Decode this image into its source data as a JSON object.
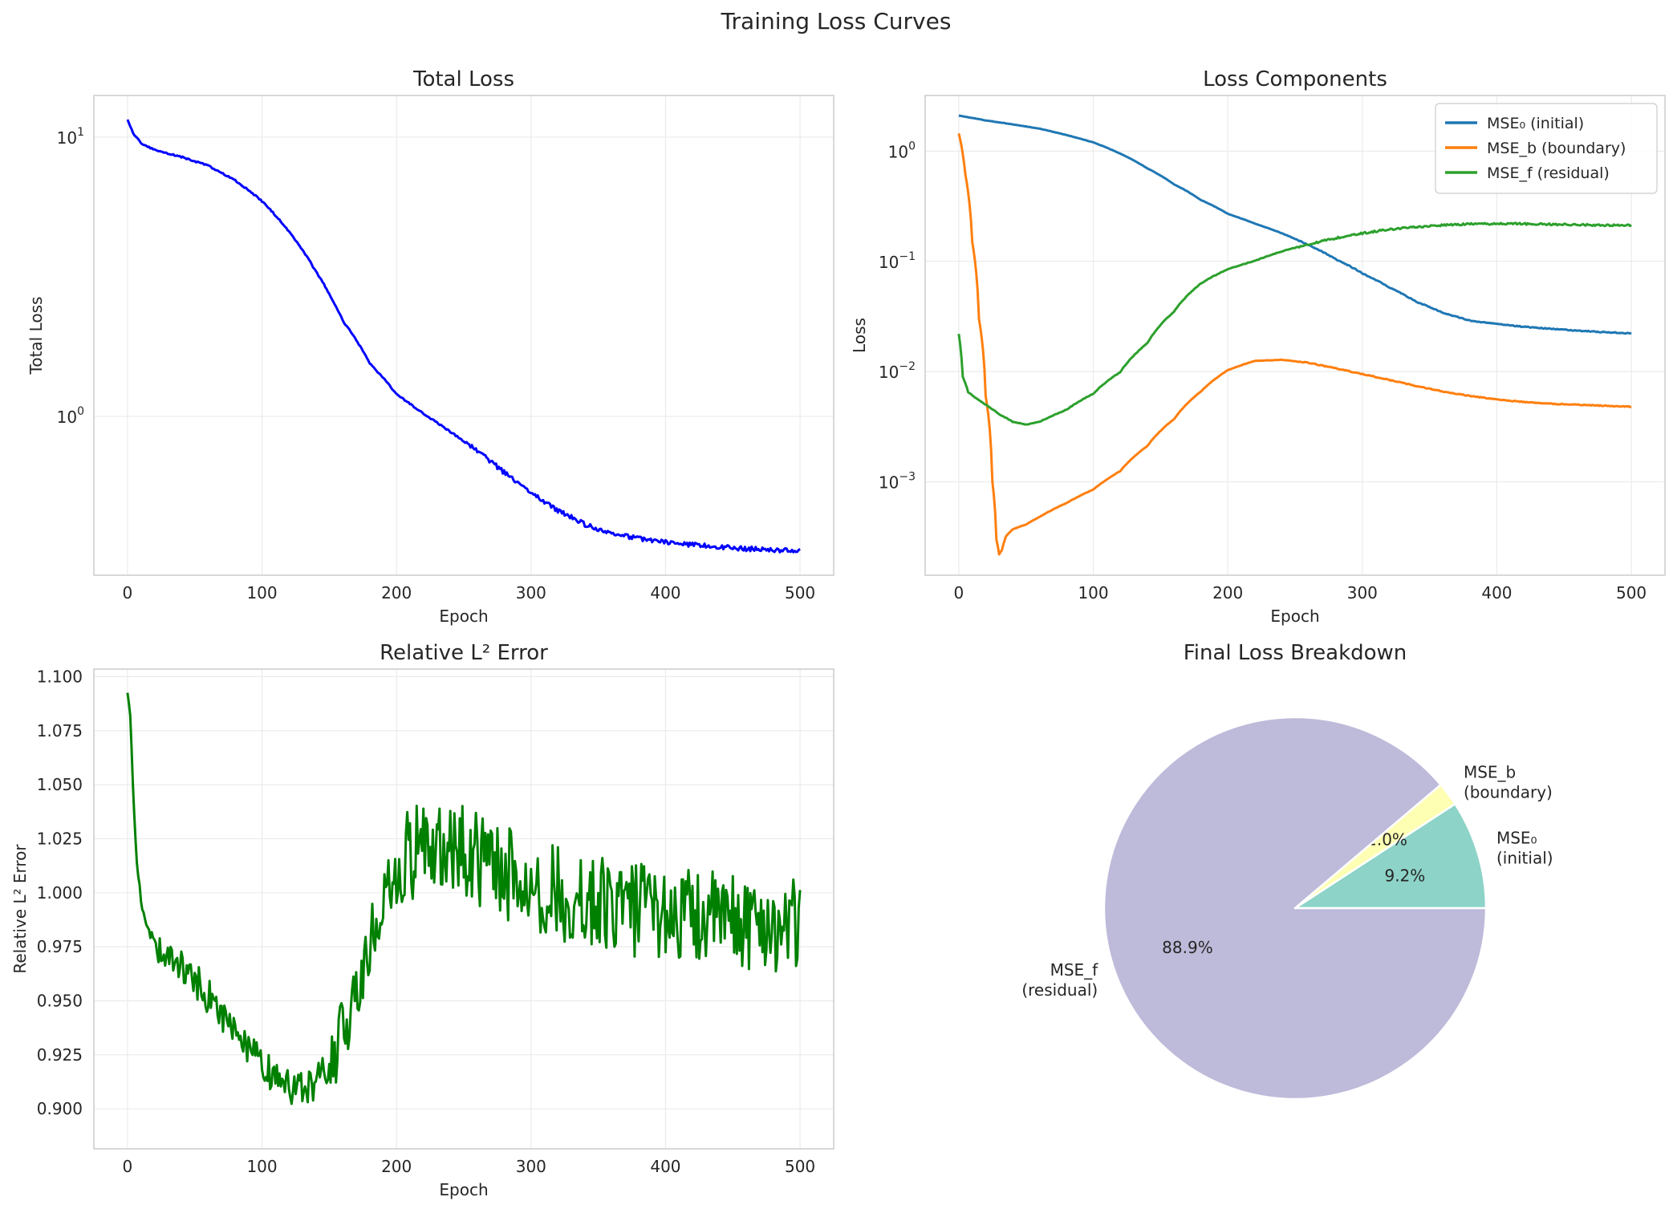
{
  "figure_title": "Training Loss Curves",
  "chart_data": [
    {
      "type": "line",
      "id": "total",
      "title": "Total Loss",
      "xlabel": "Epoch",
      "ylabel": "Total Loss",
      "yscale": "log",
      "xlim": [
        -25,
        525
      ],
      "ylim": [
        0.27,
        14.1
      ],
      "xticks": [
        0,
        100,
        200,
        300,
        400,
        500
      ],
      "yticks": [
        {
          "value": 10,
          "base": "10",
          "exp": "1"
        },
        {
          "value": 1,
          "base": "10",
          "exp": "0"
        }
      ],
      "grid": true,
      "series": [
        {
          "name": "Total Loss",
          "color": "#0000ff",
          "noise": 0.012,
          "points": [
            [
              0,
              11.5
            ],
            [
              2,
              10.9
            ],
            [
              5,
              10.2
            ],
            [
              10,
              9.5
            ],
            [
              20,
              9.0
            ],
            [
              40,
              8.5
            ],
            [
              60,
              7.9
            ],
            [
              80,
              7.0
            ],
            [
              100,
              5.9
            ],
            [
              120,
              4.6
            ],
            [
              140,
              3.3
            ],
            [
              160,
              2.2
            ],
            [
              180,
              1.55
            ],
            [
              200,
              1.2
            ],
            [
              220,
              1.02
            ],
            [
              240,
              0.88
            ],
            [
              260,
              0.75
            ],
            [
              280,
              0.63
            ],
            [
              300,
              0.53
            ],
            [
              320,
              0.46
            ],
            [
              340,
              0.41
            ],
            [
              360,
              0.38
            ],
            [
              380,
              0.365
            ],
            [
              400,
              0.355
            ],
            [
              420,
              0.347
            ],
            [
              440,
              0.341
            ],
            [
              460,
              0.336
            ],
            [
              480,
              0.332
            ],
            [
              500,
              0.33
            ]
          ]
        }
      ]
    },
    {
      "type": "line",
      "id": "components",
      "title": "Loss Components",
      "xlabel": "Epoch",
      "ylabel": "Loss",
      "yscale": "log",
      "xlim": [
        -25,
        525
      ],
      "ylim": [
        0.000142,
        3.2
      ],
      "xticks": [
        0,
        100,
        200,
        300,
        400,
        500
      ],
      "yticks": [
        {
          "value": 1,
          "base": "10",
          "exp": "0"
        },
        {
          "value": 0.1,
          "base": "10",
          "exp": "−1"
        },
        {
          "value": 0.01,
          "base": "10",
          "exp": "−2"
        },
        {
          "value": 0.001,
          "base": "10",
          "exp": "−3"
        }
      ],
      "grid": true,
      "legend_position": "top-right",
      "series": [
        {
          "name": "MSE₀ (initial)",
          "color": "#1f77b4",
          "noise": 0.006,
          "points": [
            [
              0,
              2.1
            ],
            [
              20,
              1.9
            ],
            [
              40,
              1.75
            ],
            [
              60,
              1.6
            ],
            [
              80,
              1.4
            ],
            [
              100,
              1.2
            ],
            [
              120,
              0.95
            ],
            [
              140,
              0.7
            ],
            [
              160,
              0.5
            ],
            [
              180,
              0.36
            ],
            [
              200,
              0.27
            ],
            [
              220,
              0.22
            ],
            [
              240,
              0.18
            ],
            [
              260,
              0.14
            ],
            [
              280,
              0.105
            ],
            [
              300,
              0.078
            ],
            [
              320,
              0.058
            ],
            [
              340,
              0.043
            ],
            [
              360,
              0.034
            ],
            [
              380,
              0.029
            ],
            [
              400,
              0.027
            ],
            [
              420,
              0.0255
            ],
            [
              440,
              0.0245
            ],
            [
              460,
              0.0235
            ],
            [
              480,
              0.0228
            ],
            [
              500,
              0.0222
            ]
          ]
        },
        {
          "name": "MSE_b (boundary)",
          "color": "#ff7f0e",
          "noise": 0.006,
          "points": [
            [
              0,
              1.45
            ],
            [
              5,
              0.6
            ],
            [
              10,
              0.15
            ],
            [
              15,
              0.03
            ],
            [
              20,
              0.006
            ],
            [
              25,
              0.001
            ],
            [
              28,
              0.0003
            ],
            [
              30,
              0.00022
            ],
            [
              32,
              0.00024
            ],
            [
              35,
              0.00032
            ],
            [
              40,
              0.00037
            ],
            [
              50,
              0.00041
            ],
            [
              60,
              0.00048
            ],
            [
              80,
              0.00064
            ],
            [
              100,
              0.00085
            ],
            [
              120,
              0.00125
            ],
            [
              140,
              0.0021
            ],
            [
              160,
              0.0037
            ],
            [
              180,
              0.0066
            ],
            [
              200,
              0.0103
            ],
            [
              220,
              0.0125
            ],
            [
              240,
              0.0128
            ],
            [
              260,
              0.012
            ],
            [
              280,
              0.0107
            ],
            [
              300,
              0.0095
            ],
            [
              320,
              0.0084
            ],
            [
              340,
              0.0074
            ],
            [
              360,
              0.0066
            ],
            [
              380,
              0.006
            ],
            [
              400,
              0.0056
            ],
            [
              420,
              0.0053
            ],
            [
              440,
              0.0051
            ],
            [
              460,
              0.005
            ],
            [
              480,
              0.0049
            ],
            [
              500,
              0.0048
            ]
          ]
        },
        {
          "name": "MSE_f (residual)",
          "color": "#2ca02c",
          "noise": 0.012,
          "points": [
            [
              0,
              0.022
            ],
            [
              3,
              0.009
            ],
            [
              7,
              0.0065
            ],
            [
              12,
              0.0058
            ],
            [
              20,
              0.005
            ],
            [
              30,
              0.0041
            ],
            [
              40,
              0.0035
            ],
            [
              50,
              0.0033
            ],
            [
              60,
              0.0035
            ],
            [
              80,
              0.0045
            ],
            [
              100,
              0.0063
            ],
            [
              120,
              0.0099
            ],
            [
              140,
              0.018
            ],
            [
              160,
              0.035
            ],
            [
              180,
              0.063
            ],
            [
              200,
              0.085
            ],
            [
              220,
              0.101
            ],
            [
              240,
              0.123
            ],
            [
              260,
              0.143
            ],
            [
              280,
              0.162
            ],
            [
              300,
              0.18
            ],
            [
              320,
              0.195
            ],
            [
              340,
              0.205
            ],
            [
              360,
              0.213
            ],
            [
              380,
              0.218
            ],
            [
              400,
              0.22
            ],
            [
              420,
              0.219
            ],
            [
              440,
              0.217
            ],
            [
              460,
              0.215
            ],
            [
              480,
              0.213
            ],
            [
              500,
              0.212
            ]
          ]
        }
      ]
    },
    {
      "type": "line",
      "id": "l2",
      "title": "Relative L² Error",
      "xlabel": "Epoch",
      "ylabel": "Relative L² Error",
      "yscale": "linear",
      "xlim": [
        -25,
        525
      ],
      "ylim": [
        0.8815,
        1.1035
      ],
      "xticks": [
        0,
        100,
        200,
        300,
        400,
        500
      ],
      "yticks": [
        {
          "value": 0.9,
          "label": "0.900"
        },
        {
          "value": 0.925,
          "label": "0.925"
        },
        {
          "value": 0.95,
          "label": "0.950"
        },
        {
          "value": 0.975,
          "label": "0.975"
        },
        {
          "value": 1.0,
          "label": "1.000"
        },
        {
          "value": 1.025,
          "label": "1.025"
        },
        {
          "value": 1.05,
          "label": "1.050"
        },
        {
          "value": 1.075,
          "label": "1.075"
        },
        {
          "value": 1.1,
          "label": "1.100"
        }
      ],
      "grid": true,
      "series": [
        {
          "name": "Relative L² Error",
          "color": "#008000",
          "noise": 0.0,
          "points": [
            [
              0,
              1.094
            ],
            [
              2,
              1.082
            ],
            [
              4,
              1.052
            ],
            [
              6,
              1.022
            ],
            [
              8,
              1.008
            ],
            [
              10,
              0.997
            ],
            [
              12,
              0.99
            ],
            [
              15,
              0.983
            ],
            [
              20,
              0.978
            ],
            [
              25,
              0.974
            ],
            [
              30,
              0.97
            ],
            [
              40,
              0.966
            ],
            [
              50,
              0.96
            ],
            [
              60,
              0.952
            ],
            [
              70,
              0.944
            ],
            [
              80,
              0.936
            ],
            [
              90,
              0.928
            ],
            [
              100,
              0.92
            ],
            [
              110,
              0.914
            ],
            [
              120,
              0.91
            ],
            [
              130,
              0.91
            ],
            [
              140,
              0.912
            ],
            [
              150,
              0.92
            ],
            [
              160,
              0.935
            ],
            [
              170,
              0.955
            ],
            [
              180,
              0.975
            ],
            [
              190,
              0.995
            ],
            [
              200,
              1.01
            ],
            [
              210,
              1.018
            ],
            [
              220,
              1.022
            ],
            [
              230,
              1.024
            ],
            [
              240,
              1.022
            ],
            [
              250,
              1.02
            ],
            [
              260,
              1.016
            ],
            [
              270,
              1.013
            ],
            [
              280,
              1.01
            ],
            [
              290,
              1.007
            ],
            [
              300,
              1.004
            ],
            [
              320,
              1.0
            ],
            [
              350,
              0.995
            ],
            [
              380,
              0.992
            ],
            [
              410,
              0.99
            ],
            [
              440,
              0.988
            ],
            [
              470,
              0.986
            ],
            [
              500,
              0.985
            ]
          ]
        }
      ]
    },
    {
      "type": "pie",
      "id": "breakdown",
      "title": "Final Loss Breakdown",
      "start_angle_deg": 0,
      "direction": "counterclockwise",
      "slices": [
        {
          "label": "MSE₀",
          "label_line2": "(initial)",
          "value": 9.2,
          "pct_label": "9.2%",
          "color": "#8dd3c7"
        },
        {
          "label": "MSE_b",
          "label_line2": "(boundary)",
          "value": 2.0,
          "pct_label": "2.0%",
          "color": "#ffffb3"
        },
        {
          "label": "MSE_f",
          "label_line2": "(residual)",
          "value": 88.9,
          "pct_label": "88.9%",
          "color": "#bebada"
        }
      ]
    }
  ]
}
